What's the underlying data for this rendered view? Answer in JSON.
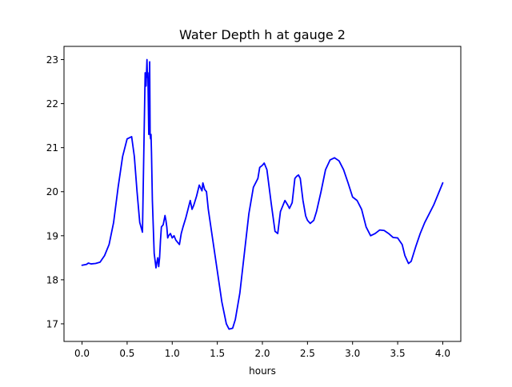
{
  "chart_data": {
    "type": "line",
    "title": "Water Depth h at gauge 2",
    "xlabel": "hours",
    "ylabel": "",
    "xlim": [
      -0.2,
      4.2
    ],
    "ylim": [
      16.6,
      23.3
    ],
    "xticks": [
      0.0,
      0.5,
      1.0,
      1.5,
      2.0,
      2.5,
      3.0,
      3.5,
      4.0
    ],
    "xtick_labels": [
      "0.0",
      "0.5",
      "1.0",
      "1.5",
      "2.0",
      "2.5",
      "3.0",
      "3.5",
      "4.0"
    ],
    "yticks": [
      17,
      18,
      19,
      20,
      21,
      22,
      23
    ],
    "ytick_labels": [
      "17",
      "18",
      "19",
      "20",
      "21",
      "22",
      "23"
    ],
    "grid": false,
    "series": [
      {
        "name": "",
        "color": "#0000ff",
        "x": [
          0.0,
          0.05,
          0.07,
          0.1,
          0.15,
          0.2,
          0.25,
          0.3,
          0.35,
          0.4,
          0.45,
          0.5,
          0.55,
          0.58,
          0.61,
          0.64,
          0.67,
          0.7,
          0.71,
          0.72,
          0.725,
          0.73,
          0.74,
          0.745,
          0.75,
          0.755,
          0.76,
          0.765,
          0.77,
          0.78,
          0.8,
          0.82,
          0.83,
          0.84,
          0.85,
          0.86,
          0.87,
          0.88,
          0.9,
          0.92,
          0.93,
          0.94,
          0.95,
          0.96,
          0.98,
          1.0,
          1.02,
          1.04,
          1.06,
          1.08,
          1.1,
          1.12,
          1.15,
          1.2,
          1.22,
          1.24,
          1.27,
          1.3,
          1.33,
          1.34,
          1.36,
          1.38,
          1.4,
          1.45,
          1.5,
          1.55,
          1.6,
          1.63,
          1.67,
          1.7,
          1.75,
          1.8,
          1.85,
          1.9,
          1.95,
          1.97,
          2.0,
          2.02,
          2.05,
          2.1,
          2.14,
          2.17,
          2.2,
          2.25,
          2.28,
          2.3,
          2.33,
          2.36,
          2.38,
          2.4,
          2.42,
          2.45,
          2.48,
          2.5,
          2.53,
          2.57,
          2.6,
          2.65,
          2.7,
          2.75,
          2.8,
          2.85,
          2.9,
          2.95,
          3.0,
          3.05,
          3.1,
          3.15,
          3.2,
          3.25,
          3.3,
          3.35,
          3.4,
          3.45,
          3.5,
          3.55,
          3.58,
          3.62,
          3.65,
          3.7,
          3.75,
          3.8,
          3.85,
          3.9,
          3.95,
          4.0
        ],
        "y": [
          18.33,
          18.35,
          18.38,
          18.36,
          18.37,
          18.4,
          18.55,
          18.8,
          19.3,
          20.1,
          20.8,
          21.2,
          21.25,
          20.8,
          20.0,
          19.3,
          19.08,
          22.7,
          22.4,
          23.0,
          22.6,
          22.7,
          21.3,
          22.4,
          22.95,
          21.3,
          21.2,
          21.3,
          20.9,
          19.8,
          18.6,
          18.27,
          18.4,
          18.5,
          18.3,
          18.5,
          18.9,
          19.2,
          19.25,
          19.46,
          19.35,
          19.2,
          18.95,
          19.0,
          19.05,
          18.95,
          19.0,
          18.9,
          18.85,
          18.8,
          19.05,
          19.2,
          19.4,
          19.8,
          19.6,
          19.7,
          19.9,
          20.15,
          20.02,
          20.2,
          20.05,
          20.0,
          19.6,
          18.9,
          18.2,
          17.5,
          17.0,
          16.88,
          16.9,
          17.1,
          17.7,
          18.6,
          19.5,
          20.1,
          20.3,
          20.55,
          20.6,
          20.65,
          20.5,
          19.7,
          19.1,
          19.05,
          19.55,
          19.8,
          19.7,
          19.62,
          19.75,
          20.3,
          20.35,
          20.38,
          20.3,
          19.8,
          19.45,
          19.35,
          19.28,
          19.35,
          19.55,
          20.0,
          20.5,
          20.72,
          20.77,
          20.7,
          20.5,
          20.2,
          19.88,
          19.8,
          19.6,
          19.2,
          19.0,
          19.05,
          19.13,
          19.12,
          19.05,
          18.96,
          18.95,
          18.8,
          18.55,
          18.37,
          18.42,
          18.75,
          19.05,
          19.3,
          19.5,
          19.7,
          19.95,
          20.2
        ]
      }
    ]
  }
}
